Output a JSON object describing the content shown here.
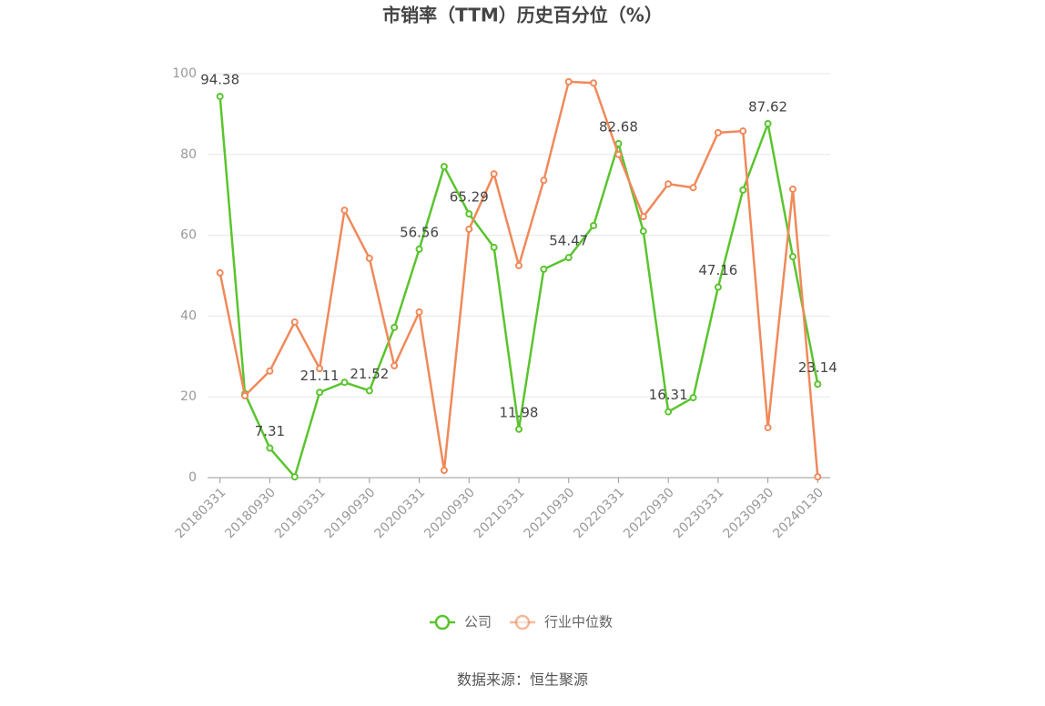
{
  "chart_data": {
    "type": "line",
    "title": "市销率（TTM）历史百分位（%）",
    "source": "数据来源：恒生聚源",
    "categories": [
      "20180331",
      null,
      "20180930",
      null,
      "20190331",
      null,
      "20190930",
      null,
      "20200331",
      null,
      "20200930",
      null,
      "20210331",
      null,
      "20210930",
      null,
      "20220331",
      null,
      "20220930",
      null,
      "20230331",
      null,
      "20230930",
      null,
      "20240130"
    ],
    "series": [
      {
        "name": "公司",
        "color": "#5ac42e",
        "values": [
          94.38,
          20.8,
          7.31,
          0.2,
          21.11,
          23.6,
          21.52,
          37.2,
          56.56,
          77.0,
          65.29,
          57.0,
          11.98,
          51.6,
          54.47,
          62.4,
          82.68,
          61.0,
          16.31,
          19.8,
          47.16,
          71.2,
          87.62,
          54.7,
          23.14
        ]
      },
      {
        "name": "行业中位数",
        "color": "#f0895a",
        "values": [
          50.7,
          20.3,
          26.4,
          38.5,
          27.0,
          66.2,
          54.3,
          27.7,
          41.0,
          1.8,
          61.5,
          75.2,
          52.5,
          73.6,
          98.0,
          97.7,
          80.0,
          64.6,
          72.7,
          71.8,
          85.4,
          85.8,
          12.4,
          71.4,
          0.2
        ]
      }
    ],
    "ylim": [
      0,
      100
    ],
    "yticks": [
      0,
      20,
      40,
      60,
      80,
      100
    ],
    "grid": true
  }
}
